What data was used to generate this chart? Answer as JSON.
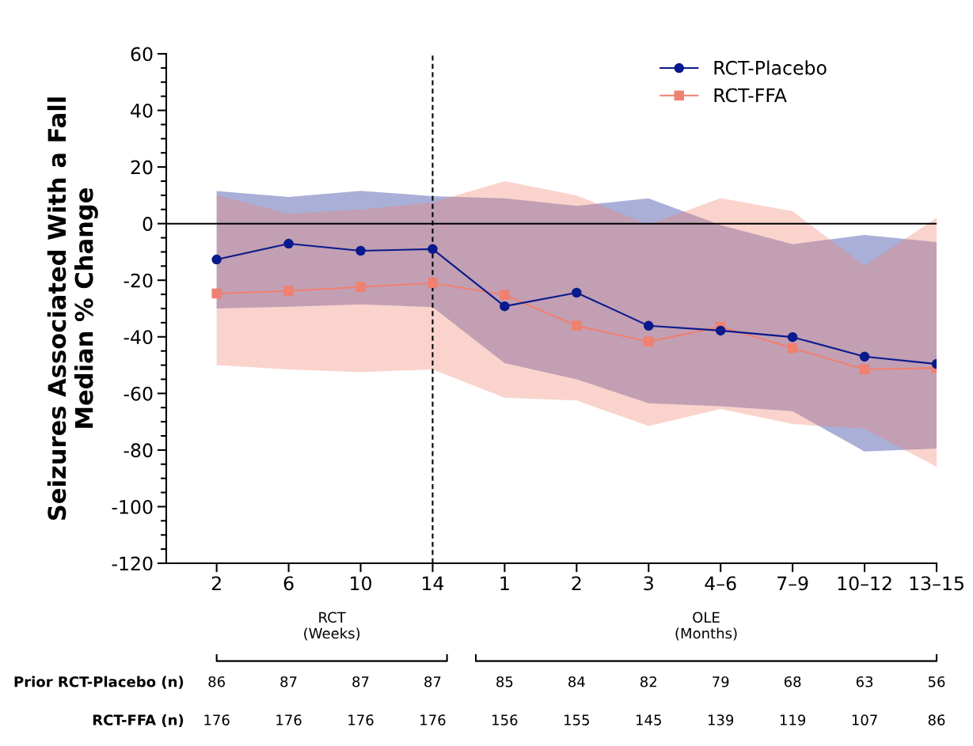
{
  "chart_data": {
    "type": "line",
    "ylabel": "Seizures Associated With a Fall\nMedian % Change",
    "categories": [
      "2",
      "6",
      "10",
      "14",
      "1",
      "2",
      "3",
      "4–6",
      "7–9",
      "10–12",
      "13–15"
    ],
    "ylim": [
      -120,
      60
    ],
    "yticks": [
      -120,
      -100,
      -80,
      -60,
      -40,
      -20,
      0,
      20,
      40,
      60
    ],
    "series": [
      {
        "name": "RCT-Placebo",
        "color": "#0a1a8c",
        "marker": "circle",
        "values": [
          -12.7,
          -7.1,
          -9.6,
          -9,
          -29.2,
          -24.4,
          -36.1,
          -37.8,
          -40.1,
          -47,
          -49.6
        ],
        "lower": [
          -30,
          -29.4,
          -28.5,
          -29.5,
          -49.3,
          -55,
          -63.5,
          -64.5,
          -66.3,
          -80.5,
          -79.5
        ],
        "upper": [
          11.5,
          9.4,
          11.6,
          9.7,
          8.9,
          6.3,
          8.9,
          -0.5,
          -7.3,
          -4,
          -6.5
        ]
      },
      {
        "name": "RCT-FFA",
        "color": "#f08070",
        "marker": "square",
        "values": [
          -24.7,
          -23.8,
          -22.4,
          -21,
          -25.2,
          -36.1,
          -41.7,
          -36.4,
          -44,
          -51.5,
          -51
        ],
        "lower": [
          -50,
          -51.5,
          -52.5,
          -51.5,
          -61.5,
          -62.5,
          -71.5,
          -65.5,
          -70.8,
          -72.5,
          -85.9
        ],
        "upper": [
          10,
          3.5,
          5,
          7.5,
          15,
          10,
          -0.4,
          9,
          4.4,
          -14.9,
          2
        ]
      }
    ],
    "ref_lines": [
      {
        "axis": "x",
        "value": "14",
        "color": "#000000",
        "line_style": "dashed"
      },
      {
        "axis": "y",
        "value": 0,
        "color": "#000000",
        "line_style": "solid"
      }
    ],
    "legend": "top right",
    "grid": false,
    "line_style": "solid",
    "annotations": [
      "RCT\n(Weeks)",
      "OLE\n(Months)",
      "Prior RCT-Placebo (n)",
      "RCT-FFA (n)",
      "86",
      "87",
      "87",
      "87",
      "85",
      "84",
      "82",
      "79",
      "68",
      "63",
      "56",
      "176",
      "176",
      "176",
      "176",
      "156",
      "155",
      "145",
      "139",
      "119",
      "107",
      "86"
    ]
  }
}
